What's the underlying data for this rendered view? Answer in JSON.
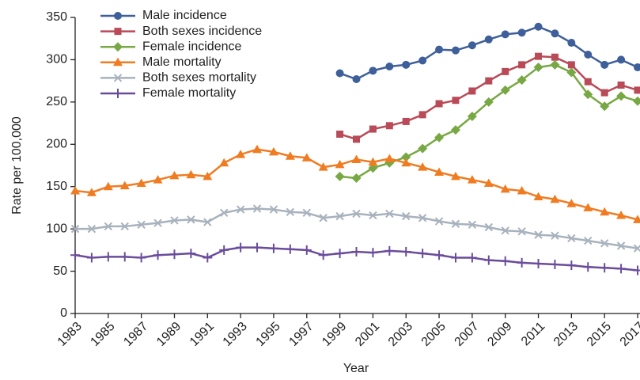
{
  "chart_data": {
    "type": "line",
    "x_label": "Year",
    "y_label": "Rate per 100,000",
    "x": [
      1983,
      1984,
      1985,
      1986,
      1987,
      1988,
      1989,
      1990,
      1991,
      1992,
      1993,
      1994,
      1995,
      1996,
      1997,
      1998,
      1999,
      2000,
      2001,
      2002,
      2003,
      2004,
      2005,
      2006,
      2007,
      2008,
      2009,
      2010,
      2011,
      2012,
      2013,
      2014,
      2015,
      2016,
      2017
    ],
    "xlim": [
      1983,
      2017
    ],
    "xticks": [
      1983,
      1985,
      1987,
      1989,
      1991,
      1993,
      1995,
      1997,
      1999,
      2001,
      2003,
      2005,
      2007,
      2009,
      2011,
      2013,
      2015,
      2017
    ],
    "ylim": [
      0,
      350
    ],
    "yticks": [
      0,
      50,
      100,
      150,
      200,
      250,
      300,
      350
    ],
    "legend": "upper left",
    "series": [
      {
        "name": "Male incidence",
        "color": "#3e5f9a",
        "marker": "circle",
        "values": [
          null,
          null,
          null,
          null,
          null,
          null,
          null,
          null,
          null,
          null,
          null,
          null,
          null,
          null,
          null,
          null,
          284,
          277,
          287,
          292,
          294,
          299,
          312,
          311,
          317,
          324,
          330,
          332,
          339,
          331,
          320,
          306,
          294,
          300,
          291
        ]
      },
      {
        "name": "Both sexes incidence",
        "color": "#b94a57",
        "marker": "square",
        "values": [
          null,
          null,
          null,
          null,
          null,
          null,
          null,
          null,
          null,
          null,
          null,
          null,
          null,
          null,
          null,
          null,
          212,
          206,
          218,
          222,
          227,
          235,
          248,
          252,
          263,
          275,
          286,
          294,
          304,
          303,
          294,
          274,
          261,
          270,
          264
        ]
      },
      {
        "name": "Female incidence",
        "color": "#78a843",
        "marker": "diamond",
        "values": [
          null,
          null,
          null,
          null,
          null,
          null,
          null,
          null,
          null,
          null,
          null,
          null,
          null,
          null,
          null,
          null,
          162,
          160,
          172,
          178,
          185,
          195,
          208,
          217,
          233,
          250,
          264,
          276,
          291,
          294,
          285,
          259,
          245,
          257,
          251
        ]
      },
      {
        "name": "Male mortality",
        "color": "#f07c22",
        "marker": "triangle",
        "values": [
          145,
          143,
          150,
          151,
          154,
          158,
          163,
          164,
          162,
          178,
          188,
          194,
          191,
          186,
          184,
          173,
          176,
          182,
          179,
          183,
          178,
          173,
          167,
          162,
          158,
          154,
          147,
          145,
          138,
          135,
          130,
          125,
          120,
          116,
          111
        ]
      },
      {
        "name": "Both sexes mortality",
        "color": "#a8b2bd",
        "marker": "x",
        "values": [
          100,
          100,
          103,
          103,
          105,
          107,
          110,
          111,
          108,
          119,
          123,
          124,
          123,
          120,
          119,
          113,
          115,
          118,
          116,
          118,
          115,
          113,
          109,
          106,
          105,
          102,
          98,
          97,
          93,
          92,
          89,
          86,
          83,
          80,
          77
        ]
      },
      {
        "name": "Female mortality",
        "color": "#6a4c9c",
        "marker": "plus",
        "values": [
          69,
          66,
          67,
          67,
          66,
          69,
          70,
          71,
          66,
          75,
          78,
          78,
          77,
          76,
          75,
          69,
          71,
          73,
          72,
          74,
          73,
          71,
          69,
          66,
          66,
          63,
          62,
          60,
          59,
          58,
          57,
          55,
          54,
          53,
          51
        ]
      }
    ]
  }
}
